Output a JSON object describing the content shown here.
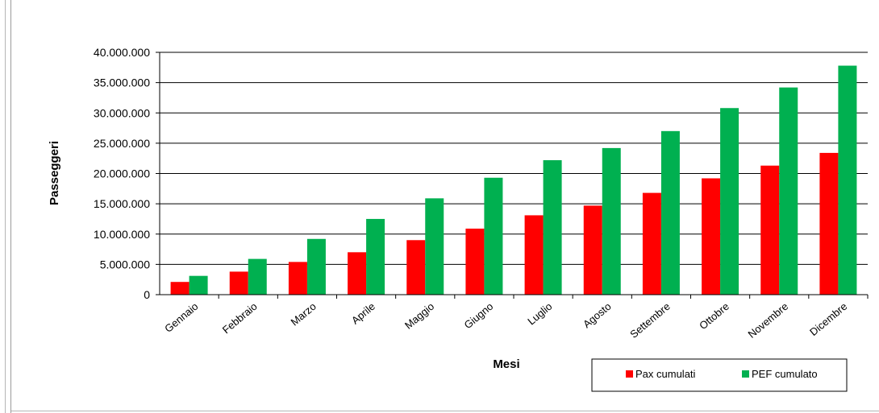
{
  "chart_data": {
    "type": "bar",
    "title": "",
    "xlabel": "Mesi",
    "ylabel": "Passeggeri",
    "ylim": [
      0,
      40000000
    ],
    "yticks": [
      0,
      5000000,
      10000000,
      15000000,
      20000000,
      25000000,
      30000000,
      35000000,
      40000000
    ],
    "ytick_labels": [
      "0",
      "5.000.000",
      "10.000.000",
      "15.000.000",
      "20.000.000",
      "25.000.000",
      "30.000.000",
      "35.000.000",
      "40.000.000"
    ],
    "grid": true,
    "legend_position": "bottom-right",
    "categories": [
      "Gennaio",
      "Febbraio",
      "Marzo",
      "Aprile",
      "Maggio",
      "Giugno",
      "Luglio",
      "Agosto",
      "Settembre",
      "Ottobre",
      "Novembre",
      "Dicembre"
    ],
    "series": [
      {
        "name": "Pax cumulati",
        "color": "#ff0000",
        "values": [
          2100000,
          3800000,
          5400000,
          7000000,
          9000000,
          10900000,
          13100000,
          14700000,
          16800000,
          19200000,
          21300000,
          23400000
        ]
      },
      {
        "name": "PEF cumulato",
        "color": "#00b050",
        "values": [
          3100000,
          5900000,
          9200000,
          12500000,
          15900000,
          19300000,
          22200000,
          24200000,
          27000000,
          30800000,
          34200000,
          37800000
        ]
      }
    ]
  }
}
